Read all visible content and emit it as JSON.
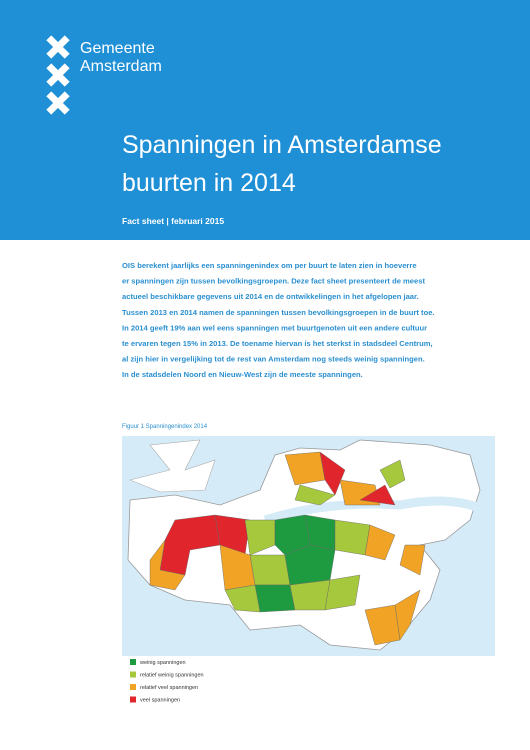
{
  "header": {
    "logo_lines": [
      "Gemeente",
      "Amsterdam"
    ],
    "title_lines": [
      "Spanningen in Amsterdamse",
      "buurten in 2014"
    ],
    "subtitle": "Fact sheet | februari 2015"
  },
  "intro_lines": [
    "OIS berekent jaarlijks een spanningenindex om per buurt te laten zien in hoeverre",
    "er spanningen zijn tussen bevolkingsgroepen. Deze fact sheet presenteert de meest",
    "actueel beschikbare gegevens uit 2014 en de ontwikkelingen in het afgelopen jaar.",
    "Tussen 2013 en 2014 namen de spanningen tussen bevolkingsgroepen in de buurt toe.",
    "In 2014 geeft 19% aan wel eens spanningen met buurtgenoten uit een andere cultuur",
    "te ervaren tegen 15% in 2013. De toename hiervan is het sterkst in stadsdeel Centrum,",
    "al zijn hier in vergelijking tot de rest van Amsterdam nog steeds weinig spanningen.",
    "In de stadsdelen Noord en Nieuw-West zijn de meeste spanningen."
  ],
  "figure": {
    "caption": "Figuur 1 Spanningenindex 2014",
    "legend": [
      {
        "label": "weinig spanningen",
        "color": "#1e9a40"
      },
      {
        "label": "relatief weinig spanningen",
        "color": "#a6c83c"
      },
      {
        "label": "relatief veel spanningen",
        "color": "#f0a324"
      },
      {
        "label": "veel spanningen",
        "color": "#e0262c"
      }
    ]
  }
}
